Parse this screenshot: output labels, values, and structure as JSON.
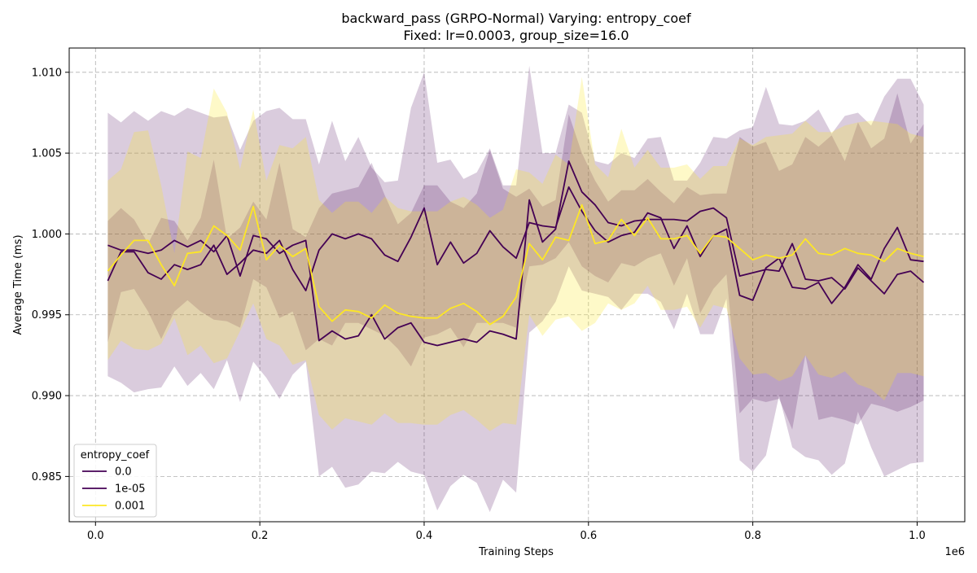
{
  "chart_data": {
    "type": "line",
    "title": "backward_pass (GRPO-Normal) Varying: entropy_coef",
    "subtitle": "Fixed: lr=0.0003, group_size=16.0",
    "xlabel": "Training Steps",
    "ylabel": "Average Time (ms)",
    "x_offset_label": "1e6",
    "x_tick_labels": [
      "0.0",
      "0.2",
      "0.4",
      "0.6",
      "0.8",
      "1.0"
    ],
    "y_tick_labels": [
      "0.985",
      "0.990",
      "0.995",
      "1.000",
      "1.005",
      "1.010"
    ],
    "xlim": [
      -32000,
      1058000
    ],
    "ylim": [
      0.9822,
      1.0115
    ],
    "grid": true,
    "legend": {
      "title": "entropy_coef",
      "placement": "lower-left"
    },
    "x": [
      15000,
      31000,
      47000,
      64000,
      80000,
      96000,
      112000,
      128000,
      144000,
      160000,
      176000,
      192000,
      208000,
      224000,
      240000,
      256000,
      272000,
      288000,
      304000,
      320000,
      336000,
      352000,
      368000,
      384000,
      400000,
      416000,
      432000,
      448000,
      464000,
      480000,
      496000,
      512000,
      528000,
      544000,
      560000,
      576000,
      592000,
      608000,
      624000,
      640000,
      656000,
      672000,
      688000,
      704000,
      720000,
      736000,
      752000,
      768000,
      784000,
      800000,
      816000,
      832000,
      848000,
      864000,
      880000,
      896000,
      912000,
      928000,
      944000,
      960000,
      976000,
      992000,
      1008000
    ],
    "series": [
      {
        "name": "0.0",
        "color": "#440154",
        "band_color": "#440154",
        "band_opacity": 0.2,
        "mean": [
          0.9993,
          0.999,
          0.999,
          0.9988,
          0.999,
          0.9996,
          0.9992,
          0.9996,
          0.9989,
          0.9999,
          0.9974,
          0.9999,
          0.9997,
          0.9988,
          0.9993,
          0.9996,
          0.9934,
          0.994,
          0.9935,
          0.9937,
          0.995,
          0.9935,
          0.9942,
          0.9945,
          0.9933,
          0.9931,
          0.9933,
          0.9935,
          0.9933,
          0.994,
          0.9938,
          0.9935,
          1.0021,
          0.9995,
          1.0003,
          1.0045,
          1.0026,
          1.0018,
          1.0007,
          1.0005,
          1.0008,
          1.0009,
          1.0009,
          1.0009,
          1.0008,
          1.0014,
          1.0016,
          1.001,
          0.9974,
          0.9976,
          0.9978,
          0.9977,
          0.9994,
          0.9972,
          0.9971,
          0.9973,
          0.9966,
          0.9979,
          0.9971,
          0.9963,
          0.9975,
          0.9977,
          0.997
        ],
        "upper": [
          1.0075,
          1.0069,
          1.0076,
          1.007,
          1.0076,
          1.0073,
          1.0078,
          1.0075,
          1.0072,
          1.0073,
          1.0052,
          1.007,
          1.0076,
          1.0078,
          1.0071,
          1.0071,
          1.0043,
          1.007,
          1.0045,
          1.006,
          1.0041,
          1.0032,
          1.0033,
          1.0078,
          1.01,
          1.0044,
          1.0046,
          1.0034,
          1.0038,
          1.0053,
          1.003,
          1.003,
          1.0104,
          1.005,
          1.005,
          1.008,
          1.0075,
          1.0045,
          1.0043,
          1.005,
          1.0047,
          1.0059,
          1.006,
          1.0033,
          1.0033,
          1.0044,
          1.006,
          1.0059,
          1.0064,
          1.0066,
          1.0091,
          1.0068,
          1.0067,
          1.007,
          1.0077,
          1.0062,
          1.0073,
          1.0075,
          1.0067,
          1.0085,
          1.0096,
          1.0096,
          1.008
        ],
        "lower": [
          0.9912,
          0.9908,
          0.9902,
          0.9904,
          0.9905,
          0.9918,
          0.9906,
          0.9914,
          0.9904,
          0.9922,
          0.9896,
          0.9921,
          0.9911,
          0.9898,
          0.9913,
          0.9921,
          0.985,
          0.9856,
          0.9843,
          0.9845,
          0.9853,
          0.9852,
          0.9859,
          0.9853,
          0.9851,
          0.9829,
          0.9844,
          0.9851,
          0.9846,
          0.9828,
          0.9848,
          0.984,
          0.9939,
          0.9946,
          0.9958,
          0.998,
          0.9965,
          0.9963,
          0.9961,
          0.9953,
          0.9963,
          0.9963,
          0.9958,
          0.9941,
          0.9963,
          0.9938,
          0.9938,
          0.996,
          0.986,
          0.9853,
          0.9863,
          0.99,
          0.9868,
          0.9862,
          0.986,
          0.9851,
          0.9858,
          0.989,
          0.9868,
          0.985,
          0.9854,
          0.9858,
          0.9859
        ]
      },
      {
        "name": "1e-05",
        "color": "#440154",
        "band_color": "#440154",
        "band_opacity": 0.2,
        "mean": [
          0.9971,
          0.9989,
          0.9989,
          0.9976,
          0.9972,
          0.9981,
          0.9978,
          0.9981,
          0.9993,
          0.9975,
          0.9982,
          0.999,
          0.9988,
          0.9996,
          0.9978,
          0.9965,
          0.999,
          1.0,
          0.9997,
          1.0,
          0.9997,
          0.9987,
          0.9983,
          0.9998,
          1.0016,
          0.9981,
          0.9995,
          0.9982,
          0.9988,
          1.0002,
          0.9992,
          0.9985,
          1.0007,
          1.0005,
          1.0004,
          1.0029,
          1.0014,
          1.0002,
          0.9995,
          0.9999,
          1.0001,
          1.0013,
          1.001,
          0.9991,
          1.0005,
          0.9986,
          0.9999,
          1.0003,
          0.9962,
          0.9959,
          0.9979,
          0.9985,
          0.9967,
          0.9966,
          0.997,
          0.9957,
          0.9967,
          0.9981,
          0.9972,
          0.9991,
          1.0004,
          0.9984,
          0.9983
        ],
        "upper": [
          1.0008,
          1.0016,
          1.0009,
          0.9994,
          1.001,
          1.0008,
          0.9996,
          1.001,
          1.0046,
          0.9997,
          1.0004,
          1.002,
          1.0009,
          1.0044,
          1.0003,
          0.9998,
          1.0016,
          1.0025,
          1.0027,
          1.0029,
          1.0044,
          1.0024,
          1.0006,
          1.0013,
          1.003,
          1.003,
          1.002,
          1.0016,
          1.0025,
          1.0052,
          1.0028,
          1.0023,
          1.0028,
          1.0017,
          1.0021,
          1.0074,
          1.005,
          1.0033,
          1.002,
          1.0027,
          1.0027,
          1.0034,
          1.0026,
          1.0019,
          1.0029,
          1.0024,
          1.0025,
          1.0025,
          1.006,
          1.0054,
          1.0057,
          1.0039,
          1.0043,
          1.006,
          1.0054,
          1.0061,
          1.0045,
          1.0069,
          1.0053,
          1.0059,
          1.0087,
          1.0056,
          1.0068
        ],
        "lower": [
          0.9933,
          0.9964,
          0.9966,
          0.9952,
          0.9935,
          0.9952,
          0.9959,
          0.9952,
          0.9947,
          0.9946,
          0.9942,
          0.9972,
          0.9967,
          0.9948,
          0.9952,
          0.9928,
          0.9935,
          0.9931,
          0.9945,
          0.9945,
          0.9941,
          0.9937,
          0.9929,
          0.9918,
          0.9936,
          0.9938,
          0.9942,
          0.993,
          0.9945,
          0.9945,
          0.9945,
          0.9942,
          0.998,
          0.9981,
          0.9985,
          0.9995,
          0.998,
          0.9974,
          0.997,
          0.9982,
          0.998,
          0.9985,
          0.9988,
          0.9968,
          0.9985,
          0.9951,
          0.9966,
          0.9975,
          0.9889,
          0.9898,
          0.9896,
          0.9898,
          0.9879,
          0.9925,
          0.9885,
          0.9887,
          0.9885,
          0.9882,
          0.9895,
          0.9893,
          0.989,
          0.9893,
          0.9897
        ]
      },
      {
        "name": "0.001",
        "color": "#fde725",
        "band_color": "#fde725",
        "band_opacity": 0.25,
        "mean": [
          0.9977,
          0.9987,
          0.9996,
          0.9996,
          0.9981,
          0.9968,
          0.9988,
          0.9989,
          1.0005,
          0.9999,
          0.999,
          1.0017,
          0.9984,
          0.9993,
          0.9986,
          0.9991,
          0.9955,
          0.9946,
          0.9953,
          0.9952,
          0.9948,
          0.9956,
          0.9951,
          0.9949,
          0.9948,
          0.9948,
          0.9954,
          0.9957,
          0.9952,
          0.9944,
          0.9949,
          0.9961,
          0.9994,
          0.9984,
          0.9998,
          0.9996,
          1.0018,
          0.9994,
          0.9996,
          1.0009,
          0.9999,
          1.001,
          0.9997,
          0.9997,
          0.9999,
          0.9988,
          0.9999,
          0.9998,
          0.9991,
          0.9984,
          0.9987,
          0.9985,
          0.9987,
          0.9997,
          0.9988,
          0.9987,
          0.9991,
          0.9988,
          0.9987,
          0.9983,
          0.9991,
          0.9988,
          0.9986
        ],
        "upper": [
          1.0033,
          1.004,
          1.0063,
          1.0064,
          1.003,
          0.9988,
          1.0051,
          1.0047,
          1.009,
          1.0075,
          1.004,
          1.0077,
          1.0033,
          1.0055,
          1.0053,
          1.006,
          1.0021,
          1.0013,
          1.002,
          1.002,
          1.0013,
          1.0023,
          1.0016,
          1.0014,
          1.0014,
          1.0014,
          1.002,
          1.0023,
          1.0018,
          1.001,
          1.0015,
          1.004,
          1.0038,
          1.0031,
          1.0049,
          1.0043,
          1.0097,
          1.0043,
          1.0035,
          1.0065,
          1.0041,
          1.0052,
          1.0041,
          1.0041,
          1.0043,
          1.0034,
          1.0042,
          1.0042,
          1.0059,
          1.0055,
          1.006,
          1.0061,
          1.0062,
          1.007,
          1.0063,
          1.0063,
          1.0067,
          1.0069,
          1.007,
          1.0069,
          1.0068,
          1.0062,
          1.006
        ],
        "lower": [
          0.9922,
          0.9934,
          0.9929,
          0.9928,
          0.9932,
          0.9948,
          0.9925,
          0.9931,
          0.992,
          0.9923,
          0.994,
          0.9957,
          0.9935,
          0.9931,
          0.9919,
          0.9922,
          0.9888,
          0.9879,
          0.9886,
          0.9884,
          0.9882,
          0.9889,
          0.9883,
          0.9883,
          0.9882,
          0.9882,
          0.9888,
          0.9891,
          0.9885,
          0.9878,
          0.9883,
          0.9882,
          0.995,
          0.9937,
          0.9947,
          0.9949,
          0.994,
          0.9945,
          0.9957,
          0.9953,
          0.9957,
          0.9968,
          0.9953,
          0.9953,
          0.9955,
          0.9942,
          0.9956,
          0.9954,
          0.9923,
          0.9913,
          0.9914,
          0.9909,
          0.9912,
          0.9925,
          0.9913,
          0.9911,
          0.9915,
          0.9907,
          0.9904,
          0.9897,
          0.9914,
          0.9914,
          0.9912
        ]
      }
    ]
  }
}
